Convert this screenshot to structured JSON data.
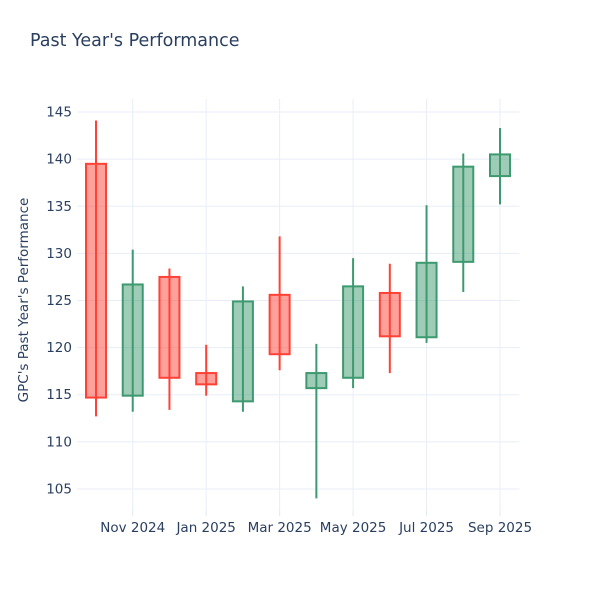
{
  "chart_data": {
    "type": "candlestick",
    "title": "Past Year's Performance",
    "ylabel": "GPC's Past Year's Performance",
    "xlabel": "",
    "x": [
      "Oct 2024",
      "Nov 2024",
      "Dec 2024",
      "Jan 2025",
      "Feb 2025",
      "Mar 2025",
      "Apr 2025",
      "May 2025",
      "Jun 2025",
      "Jul 2025",
      "Aug 2025",
      "Sep 2025"
    ],
    "series": [
      {
        "name": "GPC OHLC",
        "open": [
          139.5,
          114.9,
          127.5,
          117.3,
          114.3,
          125.6,
          115.7,
          116.8,
          125.8,
          121.1,
          129.1,
          138.2
        ],
        "high": [
          144.1,
          130.4,
          128.4,
          120.3,
          126.5,
          131.8,
          120.4,
          129.5,
          128.9,
          135.1,
          140.6,
          143.3
        ],
        "low": [
          112.7,
          113.2,
          113.4,
          114.9,
          113.2,
          117.6,
          104.0,
          115.7,
          117.3,
          120.5,
          125.9,
          135.2
        ],
        "close": [
          114.7,
          126.7,
          116.8,
          116.1,
          124.9,
          119.3,
          117.3,
          126.5,
          121.2,
          129.0,
          139.2,
          140.5
        ]
      }
    ],
    "ytick_values": [
      105,
      110,
      115,
      120,
      125,
      130,
      135,
      140,
      145
    ],
    "xtick_labels": [
      "Nov 2024",
      "Jan 2025",
      "Mar 2025",
      "May 2025",
      "Jul 2025",
      "Sep 2025"
    ],
    "xtick_index": [
      1,
      3,
      5,
      7,
      9,
      11
    ],
    "ylim": [
      102.77,
      146.38
    ],
    "grid": true,
    "legend_position": "none",
    "colors": {
      "increasing_line": "#3D9970",
      "increasing_fill": "rgba(61,153,112,0.5)",
      "decreasing_line": "#FF4136",
      "decreasing_fill": "rgba(255,65,54,0.5)",
      "grid": "#E8EEF7",
      "tick_mark": "#E1E8F2",
      "text": "#2A3F5F",
      "background": "#FFFFFF"
    }
  }
}
